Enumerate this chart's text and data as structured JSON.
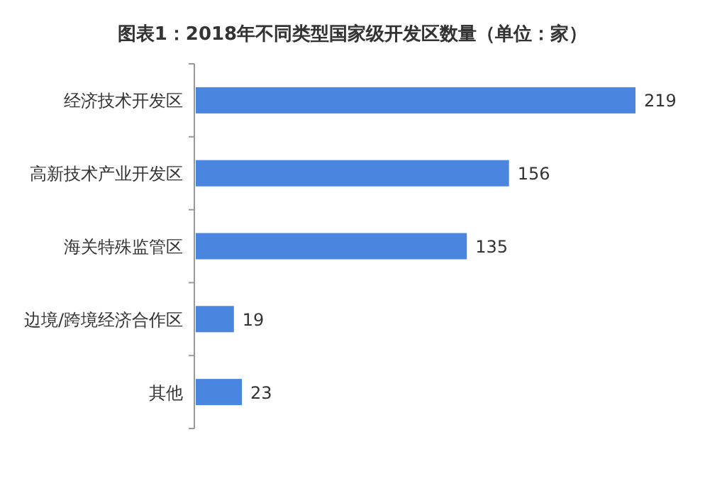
{
  "chart_data": {
    "type": "bar",
    "orientation": "horizontal",
    "title": "图表1：2018年不同类型国家级开发区数量（单位：家）",
    "categories": [
      "经济技术开发区",
      "高新技术产业开发区",
      "海关特殊监管区",
      "边境/跨境经济合作区",
      "其他"
    ],
    "values": [
      219,
      156,
      135,
      19,
      23
    ],
    "color": "#4a86e0",
    "data_labels": true
  }
}
